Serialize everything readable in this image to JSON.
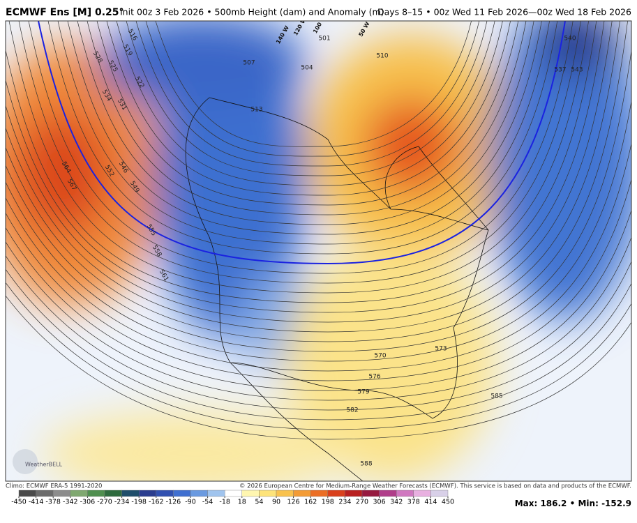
{
  "header": {
    "model": "ECMWF Ens [M] 0.25°",
    "description": "Init 00z 3 Feb 2026 • 500mb Height (dam) and Anomaly (m)",
    "valid": "Days 8–15 • 00z Wed 11 Feb 2026—00z Wed 18 Feb 2026"
  },
  "map": {
    "contour_labels": [
      516,
      519,
      522,
      525,
      528,
      531,
      534,
      546,
      549,
      552,
      555,
      558,
      561,
      564,
      567,
      507,
      513,
      501,
      504,
      510,
      537,
      540,
      543,
      570,
      573,
      576,
      579,
      582,
      585,
      588
    ],
    "longitude_labels": [
      "140 W",
      "120 W",
      "100 W",
      "50 W"
    ],
    "logo": "WeatherBELL"
  },
  "footer": {
    "climo": "Climo: ECMWF ERA-5 1991-2020",
    "copyright": "© 2026 European Centre for Medium-Range Weather Forecasts (ECMWF). This service is based on data and products of the ECMWF."
  },
  "colorbar": {
    "ticks": [
      -450,
      -414,
      -378,
      -342,
      -306,
      -270,
      -234,
      -198,
      -162,
      -126,
      -90,
      -54,
      -18,
      18,
      54,
      90,
      126,
      162,
      198,
      234,
      270,
      306,
      342,
      378,
      414,
      450
    ],
    "colors": [
      "#4a4a4a",
      "#6b6b6b",
      "#8c8c8c",
      "#7fa870",
      "#4f8f4f",
      "#2e6b3e",
      "#1f4e6b",
      "#2a3d8f",
      "#3050b0",
      "#3f6fd0",
      "#6a9ae0",
      "#a0c4ee",
      "#ffffff",
      "#fff6b0",
      "#fde37a",
      "#f9c24e",
      "#f39b35",
      "#eb6e25",
      "#d9401c",
      "#b81f1f",
      "#961a3f",
      "#b03e8a",
      "#d078c0",
      "#e8b0e0",
      "#d8d0e8"
    ]
  },
  "extremes": {
    "max_label": "Max:",
    "max": 186.2,
    "separator": "•",
    "min_label": "Min:",
    "min": -152.9
  }
}
